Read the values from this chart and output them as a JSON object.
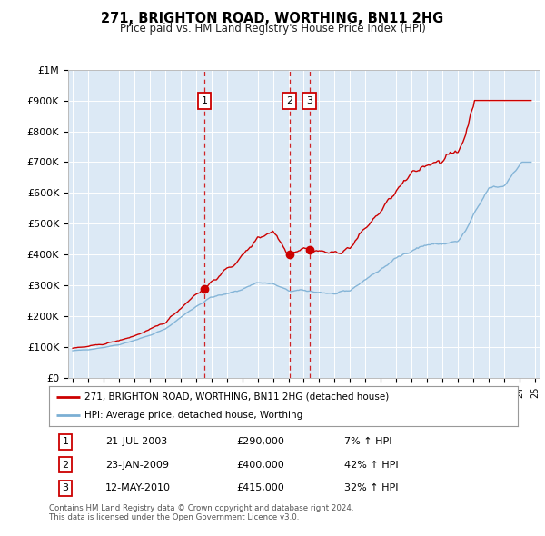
{
  "title": "271, BRIGHTON ROAD, WORTHING, BN11 2HG",
  "subtitle": "Price paid vs. HM Land Registry's House Price Index (HPI)",
  "bg_color": "#dce9f5",
  "red_line_color": "#cc0000",
  "blue_line_color": "#7bafd4",
  "legend_label_red": "271, BRIGHTON ROAD, WORTHING, BN11 2HG (detached house)",
  "legend_label_blue": "HPI: Average price, detached house, Worthing",
  "transactions": [
    {
      "num": 1,
      "date": "21-JUL-2003",
      "price": 290000,
      "hpi_pct": "7% ↑ HPI",
      "x": 2003.55
    },
    {
      "num": 2,
      "date": "23-JAN-2009",
      "price": 400000,
      "hpi_pct": "42% ↑ HPI",
      "x": 2009.07
    },
    {
      "num": 3,
      "date": "12-MAY-2010",
      "price": 415000,
      "hpi_pct": "32% ↑ HPI",
      "x": 2010.37
    }
  ],
  "vline_color": "#cc0000",
  "footnote": "Contains HM Land Registry data © Crown copyright and database right 2024.\nThis data is licensed under the Open Government Licence v3.0.",
  "ylim": [
    0,
    1000000
  ],
  "xlim": [
    1994.7,
    2025.3
  ],
  "yticks": [
    0,
    100000,
    200000,
    300000,
    400000,
    500000,
    600000,
    700000,
    800000,
    900000,
    1000000
  ],
  "ytick_labels": [
    "£0",
    "£100K",
    "£200K",
    "£300K",
    "£400K",
    "£500K",
    "£600K",
    "£700K",
    "£800K",
    "£900K",
    "£1M"
  ],
  "marker_y": 900000,
  "marker_box_color": "#cc0000",
  "hpi_months": [
    1995.0,
    1995.08,
    1995.17,
    1995.25,
    1995.33,
    1995.42,
    1995.5,
    1995.58,
    1995.67,
    1995.75,
    1995.83,
    1995.92,
    1996.0,
    1996.08,
    1996.17,
    1996.25,
    1996.33,
    1996.42,
    1996.5,
    1996.58,
    1996.67,
    1996.75,
    1996.83,
    1996.92,
    1997.0,
    1997.08,
    1997.17,
    1997.25,
    1997.33,
    1997.42,
    1997.5,
    1997.58,
    1997.67,
    1997.75,
    1997.83,
    1997.92,
    1998.0,
    1998.08,
    1998.17,
    1998.25,
    1998.33,
    1998.42,
    1998.5,
    1998.58,
    1998.67,
    1998.75,
    1998.83,
    1998.92,
    1999.0,
    1999.08,
    1999.17,
    1999.25,
    1999.33,
    1999.42,
    1999.5,
    1999.58,
    1999.67,
    1999.75,
    1999.83,
    1999.92,
    2000.0,
    2000.08,
    2000.17,
    2000.25,
    2000.33,
    2000.42,
    2000.5,
    2000.58,
    2000.67,
    2000.75,
    2000.83,
    2000.92,
    2001.0,
    2001.08,
    2001.17,
    2001.25,
    2001.33,
    2001.42,
    2001.5,
    2001.58,
    2001.67,
    2001.75,
    2001.83,
    2001.92,
    2002.0,
    2002.08,
    2002.17,
    2002.25,
    2002.33,
    2002.42,
    2002.5,
    2002.58,
    2002.67,
    2002.75,
    2002.83,
    2002.92,
    2003.0,
    2003.08,
    2003.17,
    2003.25,
    2003.33,
    2003.42,
    2003.5,
    2003.58,
    2003.67,
    2003.75,
    2003.83,
    2003.92,
    2004.0,
    2004.08,
    2004.17,
    2004.25,
    2004.33,
    2004.42,
    2004.5,
    2004.58,
    2004.67,
    2004.75,
    2004.83,
    2004.92,
    2005.0,
    2005.08,
    2005.17,
    2005.25,
    2005.33,
    2005.42,
    2005.5,
    2005.58,
    2005.67,
    2005.75,
    2005.83,
    2005.92,
    2006.0,
    2006.08,
    2006.17,
    2006.25,
    2006.33,
    2006.42,
    2006.5,
    2006.58,
    2006.67,
    2006.75,
    2006.83,
    2006.92,
    2007.0,
    2007.08,
    2007.17,
    2007.25,
    2007.33,
    2007.42,
    2007.5,
    2007.58,
    2007.67,
    2007.75,
    2007.83,
    2007.92,
    2008.0,
    2008.08,
    2008.17,
    2008.25,
    2008.33,
    2008.42,
    2008.5,
    2008.58,
    2008.67,
    2008.75,
    2008.83,
    2008.92,
    2009.0,
    2009.08,
    2009.17,
    2009.25,
    2009.33,
    2009.42,
    2009.5,
    2009.58,
    2009.67,
    2009.75,
    2009.83,
    2009.92,
    2010.0,
    2010.08,
    2010.17,
    2010.25,
    2010.33,
    2010.42,
    2010.5,
    2010.58,
    2010.67,
    2010.75,
    2010.83,
    2010.92,
    2011.0,
    2011.08,
    2011.17,
    2011.25,
    2011.33,
    2011.42,
    2011.5,
    2011.58,
    2011.67,
    2011.75,
    2011.83,
    2011.92,
    2012.0,
    2012.08,
    2012.17,
    2012.25,
    2012.33,
    2012.42,
    2012.5,
    2012.58,
    2012.67,
    2012.75,
    2012.83,
    2012.92,
    2013.0,
    2013.08,
    2013.17,
    2013.25,
    2013.33,
    2013.42,
    2013.5,
    2013.58,
    2013.67,
    2013.75,
    2013.83,
    2013.92,
    2014.0,
    2014.08,
    2014.17,
    2014.25,
    2014.33,
    2014.42,
    2014.5,
    2014.58,
    2014.67,
    2014.75,
    2014.83,
    2014.92,
    2015.0,
    2015.08,
    2015.17,
    2015.25,
    2015.33,
    2015.42,
    2015.5,
    2015.58,
    2015.67,
    2015.75,
    2015.83,
    2015.92,
    2016.0,
    2016.08,
    2016.17,
    2016.25,
    2016.33,
    2016.42,
    2016.5,
    2016.58,
    2016.67,
    2016.75,
    2016.83,
    2016.92,
    2017.0,
    2017.08,
    2017.17,
    2017.25,
    2017.33,
    2017.42,
    2017.5,
    2017.58,
    2017.67,
    2017.75,
    2017.83,
    2017.92,
    2018.0,
    2018.08,
    2018.17,
    2018.25,
    2018.33,
    2018.42,
    2018.5,
    2018.58,
    2018.67,
    2018.75,
    2018.83,
    2018.92,
    2019.0,
    2019.08,
    2019.17,
    2019.25,
    2019.33,
    2019.42,
    2019.5,
    2019.58,
    2019.67,
    2019.75,
    2019.83,
    2019.92,
    2020.0,
    2020.08,
    2020.17,
    2020.25,
    2020.33,
    2020.42,
    2020.5,
    2020.58,
    2020.67,
    2020.75,
    2020.83,
    2020.92,
    2021.0,
    2021.08,
    2021.17,
    2021.25,
    2021.33,
    2021.42,
    2021.5,
    2021.58,
    2021.67,
    2021.75,
    2021.83,
    2021.92,
    2022.0,
    2022.08,
    2022.17,
    2022.25,
    2022.33,
    2022.42,
    2022.5,
    2022.58,
    2022.67,
    2022.75,
    2022.83,
    2022.92,
    2023.0,
    2023.08,
    2023.17,
    2023.25,
    2023.33,
    2023.42,
    2023.5,
    2023.58,
    2023.67,
    2023.75,
    2023.83,
    2023.92,
    2024.0,
    2024.08,
    2024.17,
    2024.25,
    2024.33,
    2024.42,
    2024.5,
    2024.58,
    2024.67,
    2024.75
  ]
}
